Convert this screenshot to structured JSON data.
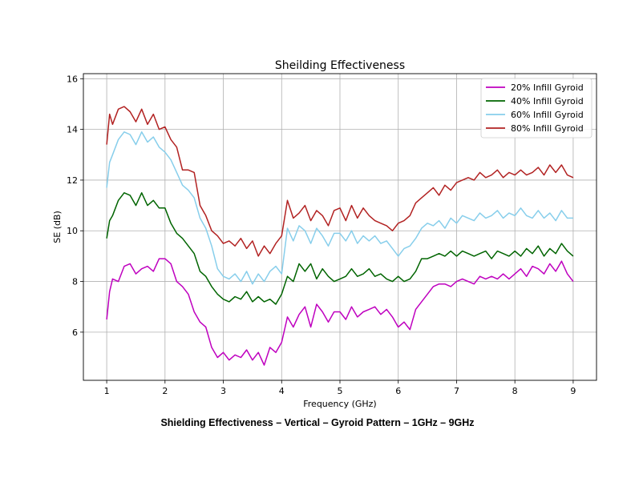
{
  "caption": "Shielding Effectiveness – Vertical – Gyroid Pattern – 1GHz – 9GHz",
  "chart_data": {
    "type": "line",
    "title": "Sheilding Effectiveness",
    "xlabel": "Frequency (GHz)",
    "ylabel": "SE (dB)",
    "xlim": [
      0.6,
      9.4
    ],
    "ylim": [
      4.1,
      16.2
    ],
    "xticks": [
      1,
      2,
      3,
      4,
      5,
      6,
      7,
      8,
      9
    ],
    "yticks": [
      6,
      8,
      10,
      12,
      14,
      16
    ],
    "grid": true,
    "legend_position": "top-right",
    "x": [
      1.0,
      1.05,
      1.1,
      1.2,
      1.3,
      1.4,
      1.5,
      1.6,
      1.7,
      1.8,
      1.9,
      2.0,
      2.1,
      2.2,
      2.3,
      2.4,
      2.5,
      2.6,
      2.7,
      2.8,
      2.9,
      3.0,
      3.1,
      3.2,
      3.3,
      3.4,
      3.5,
      3.6,
      3.7,
      3.8,
      3.9,
      4.0,
      4.1,
      4.2,
      4.3,
      4.4,
      4.5,
      4.6,
      4.7,
      4.8,
      4.9,
      5.0,
      5.1,
      5.2,
      5.3,
      5.4,
      5.5,
      5.6,
      5.7,
      5.8,
      5.9,
      6.0,
      6.1,
      6.2,
      6.3,
      6.4,
      6.5,
      6.6,
      6.7,
      6.8,
      6.9,
      7.0,
      7.1,
      7.2,
      7.3,
      7.4,
      7.5,
      7.6,
      7.7,
      7.8,
      7.9,
      8.0,
      8.1,
      8.2,
      8.3,
      8.4,
      8.5,
      8.6,
      8.7,
      8.8,
      8.9,
      9.0
    ],
    "series": [
      {
        "name": "20% Infill Gyroid",
        "color": "#bf00bf",
        "values": [
          6.5,
          7.6,
          8.1,
          8.0,
          8.6,
          8.7,
          8.3,
          8.5,
          8.6,
          8.4,
          8.9,
          8.9,
          8.7,
          8.0,
          7.8,
          7.5,
          6.8,
          6.4,
          6.2,
          5.4,
          5.0,
          5.2,
          4.9,
          5.1,
          5.0,
          5.3,
          4.9,
          5.2,
          4.7,
          5.4,
          5.2,
          5.6,
          6.6,
          6.2,
          6.7,
          7.0,
          6.2,
          7.1,
          6.8,
          6.4,
          6.8,
          6.8,
          6.5,
          7.0,
          6.6,
          6.8,
          6.9,
          7.0,
          6.7,
          6.9,
          6.6,
          6.2,
          6.4,
          6.1,
          6.9,
          7.2,
          7.5,
          7.8,
          7.9,
          7.9,
          7.8,
          8.0,
          8.1,
          8.0,
          7.9,
          8.2,
          8.1,
          8.2,
          8.1,
          8.3,
          8.1,
          8.3,
          8.5,
          8.2,
          8.6,
          8.5,
          8.3,
          8.7,
          8.4,
          8.8,
          8.3,
          8.0
        ]
      },
      {
        "name": "40% Infill Gyroid",
        "color": "#006400",
        "values": [
          9.7,
          10.4,
          10.6,
          11.2,
          11.5,
          11.4,
          11.0,
          11.5,
          11.0,
          11.2,
          10.9,
          10.9,
          10.3,
          9.9,
          9.7,
          9.4,
          9.1,
          8.4,
          8.2,
          7.8,
          7.5,
          7.3,
          7.2,
          7.4,
          7.3,
          7.6,
          7.2,
          7.4,
          7.2,
          7.3,
          7.1,
          7.5,
          8.2,
          8.0,
          8.7,
          8.4,
          8.7,
          8.1,
          8.5,
          8.2,
          8.0,
          8.1,
          8.2,
          8.5,
          8.2,
          8.3,
          8.5,
          8.2,
          8.3,
          8.1,
          8.0,
          8.2,
          8.0,
          8.1,
          8.4,
          8.9,
          8.9,
          9.0,
          9.1,
          9.0,
          9.2,
          9.0,
          9.2,
          9.1,
          9.0,
          9.1,
          9.2,
          8.9,
          9.2,
          9.1,
          9.0,
          9.2,
          9.0,
          9.3,
          9.1,
          9.4,
          9.0,
          9.3,
          9.1,
          9.5,
          9.2,
          9.0
        ]
      },
      {
        "name": "60% Infill Gyroid",
        "color": "#87ceeb",
        "values": [
          11.7,
          12.7,
          13.0,
          13.6,
          13.9,
          13.8,
          13.4,
          13.9,
          13.5,
          13.7,
          13.3,
          13.1,
          12.8,
          12.3,
          11.8,
          11.6,
          11.3,
          10.5,
          10.1,
          9.4,
          8.5,
          8.2,
          8.1,
          8.3,
          8.0,
          8.4,
          7.9,
          8.3,
          8.0,
          8.4,
          8.6,
          8.3,
          10.1,
          9.6,
          10.2,
          10.0,
          9.5,
          10.1,
          9.8,
          9.4,
          9.9,
          9.9,
          9.6,
          10.0,
          9.5,
          9.8,
          9.6,
          9.8,
          9.5,
          9.6,
          9.3,
          9.0,
          9.3,
          9.4,
          9.7,
          10.1,
          10.3,
          10.2,
          10.4,
          10.1,
          10.5,
          10.3,
          10.6,
          10.5,
          10.4,
          10.7,
          10.5,
          10.6,
          10.8,
          10.5,
          10.7,
          10.6,
          10.9,
          10.6,
          10.5,
          10.8,
          10.5,
          10.7,
          10.4,
          10.8,
          10.5,
          10.5
        ]
      },
      {
        "name": "80% Infill Gyroid",
        "color": "#b22222",
        "values": [
          13.4,
          14.6,
          14.2,
          14.8,
          14.9,
          14.7,
          14.3,
          14.8,
          14.2,
          14.6,
          14.0,
          14.1,
          13.6,
          13.3,
          12.4,
          12.4,
          12.3,
          11.0,
          10.6,
          10.0,
          9.8,
          9.5,
          9.6,
          9.4,
          9.7,
          9.3,
          9.6,
          9.0,
          9.4,
          9.1,
          9.5,
          9.8,
          11.2,
          10.5,
          10.7,
          11.0,
          10.4,
          10.8,
          10.6,
          10.2,
          10.8,
          10.9,
          10.4,
          11.0,
          10.5,
          10.9,
          10.6,
          10.4,
          10.3,
          10.2,
          10.0,
          10.3,
          10.4,
          10.6,
          11.1,
          11.3,
          11.5,
          11.7,
          11.4,
          11.8,
          11.6,
          11.9,
          12.0,
          12.1,
          12.0,
          12.3,
          12.1,
          12.2,
          12.4,
          12.1,
          12.3,
          12.2,
          12.4,
          12.2,
          12.3,
          12.5,
          12.2,
          12.6,
          12.3,
          12.6,
          12.2,
          12.1
        ]
      }
    ]
  }
}
